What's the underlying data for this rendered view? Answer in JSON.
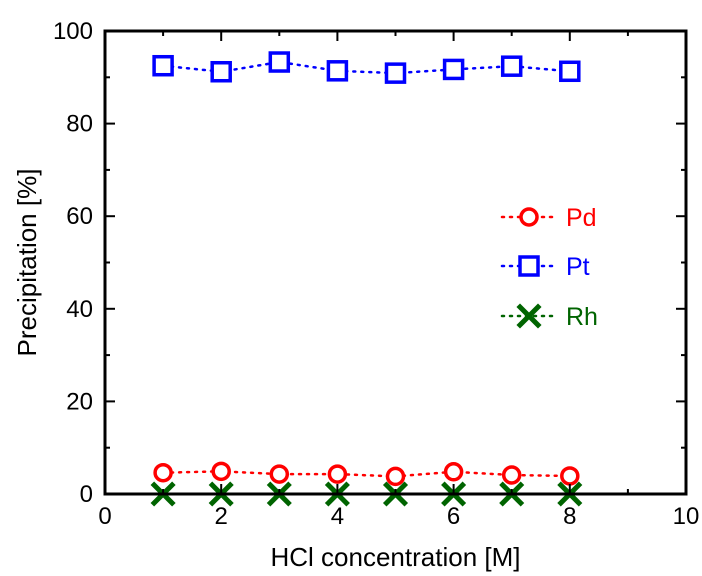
{
  "chart_data": {
    "type": "scatter",
    "title": "",
    "xlabel": "HCl concentration [M]",
    "ylabel": "Precipitation [%]",
    "xlim": [
      0,
      10
    ],
    "ylim": [
      0,
      100
    ],
    "xticks": [
      0,
      2,
      4,
      6,
      8,
      10
    ],
    "yticks": [
      0,
      20,
      40,
      60,
      80,
      100
    ],
    "grid": false,
    "legend_position": "center-right",
    "series": [
      {
        "name": "Pd",
        "marker": "circle",
        "line": "dotted",
        "color": "#ff0000",
        "x": [
          1,
          2,
          3,
          4,
          5,
          6,
          7,
          8
        ],
        "y": [
          4.6,
          4.9,
          4.3,
          4.3,
          3.8,
          4.8,
          4.1,
          3.9
        ]
      },
      {
        "name": "Pt",
        "marker": "square",
        "line": "dotted",
        "color": "#0000ff",
        "x": [
          1,
          2,
          3,
          4,
          5,
          6,
          7,
          8
        ],
        "y": [
          92.5,
          91.2,
          93.3,
          91.4,
          90.9,
          91.7,
          92.4,
          91.3
        ]
      },
      {
        "name": "Rh",
        "marker": "x",
        "line": "dotted",
        "color": "#006400",
        "x": [
          1,
          2,
          3,
          4,
          5,
          6,
          7,
          8
        ],
        "y": [
          0,
          0,
          0,
          0,
          0,
          0,
          0,
          0
        ]
      }
    ]
  }
}
